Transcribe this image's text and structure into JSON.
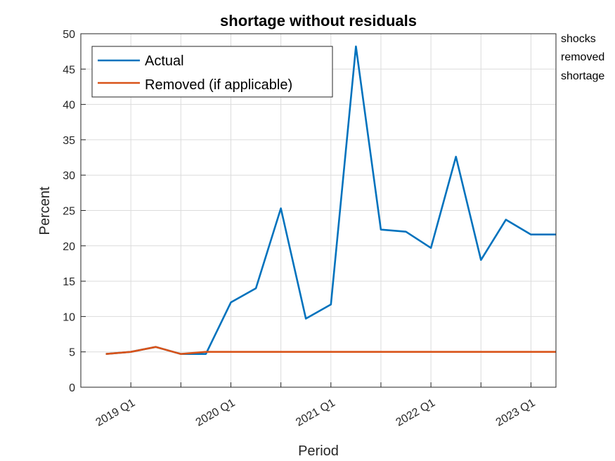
{
  "chart_data": {
    "type": "line",
    "title": "shortage without residuals",
    "xlabel": "Period",
    "ylabel": "Percent",
    "ylim": [
      0,
      50
    ],
    "yticks": [
      0,
      5,
      10,
      15,
      20,
      25,
      30,
      35,
      40,
      45,
      50
    ],
    "xlim": [
      -0.5,
      18.5
    ],
    "xtick_labels": [
      {
        "label": "2019 Q1",
        "x": 1.5
      },
      {
        "label": "2020 Q1",
        "x": 5.5
      },
      {
        "label": "2021 Q1",
        "x": 9.5
      },
      {
        "label": "2022 Q1",
        "x": 13.5
      },
      {
        "label": "2023 Q1",
        "x": 17.5
      }
    ],
    "x_grid": [
      1.5,
      3.5,
      5.5,
      7.5,
      9.5,
      11.5,
      13.5,
      15.5,
      17.5
    ],
    "grid": true,
    "legend_position": "top-left",
    "series": [
      {
        "name": "Actual",
        "color": "#0072BD",
        "x": [
          0.5,
          1.5,
          2.5,
          3.5,
          4.5,
          5.5,
          6.5,
          7.5,
          8.5,
          9.5,
          10.5,
          11.5,
          12.5,
          13.5,
          14.5,
          15.5,
          16.5,
          17.5,
          18.5
        ],
        "values": [
          4.7,
          5.0,
          5.7,
          4.7,
          4.7,
          12.0,
          14.0,
          25.3,
          9.7,
          11.7,
          48.2,
          22.3,
          22.0,
          19.7,
          32.6,
          18.0,
          23.7,
          21.6,
          21.6
        ]
      },
      {
        "name": "Removed (if applicable)",
        "color": "#D95319",
        "x": [
          0.5,
          1.5,
          2.5,
          3.5,
          4.5,
          5.5,
          6.5,
          7.5,
          8.5,
          9.5,
          10.5,
          11.5,
          12.5,
          13.5,
          14.5,
          15.5,
          16.5,
          17.5,
          18.5
        ],
        "values": [
          4.7,
          5.0,
          5.7,
          4.7,
          5.0,
          5.0,
          5.0,
          5.0,
          5.0,
          5.0,
          5.0,
          5.0,
          5.0,
          5.0,
          5.0,
          5.0,
          5.0,
          5.0,
          5.0
        ]
      }
    ],
    "annotations": [
      "shocks",
      "removed",
      "shortage"
    ]
  }
}
